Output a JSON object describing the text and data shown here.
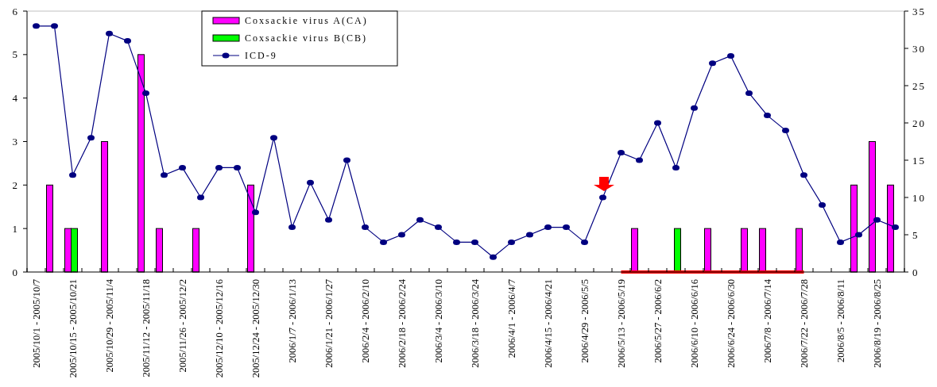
{
  "chart_data": {
    "type": "bar",
    "categories": [
      "2005/10/1 - 2005/10/7",
      null,
      "2005/10/15 - 2005/10/21",
      null,
      "2005/10/29 - 2005/11/4",
      null,
      "2005/11/12 - 2005/11/18",
      null,
      "2005/11/26 - 2005/12/2",
      null,
      "2005/12/10 - 2005/12/16",
      null,
      "2005/12/24 - 2005/12/30",
      null,
      "2006/1/7 - 2006/1/13",
      null,
      "2006/1/21 - 2006/1/27",
      null,
      "2006/2/4 - 2006/2/10",
      null,
      "2006/2/18 - 2006/2/24",
      null,
      "2006/3/4 - 2006/3/10",
      null,
      "2006/3/18 - 2006/3/24",
      null,
      "2006/4/1 - 2006/4/7",
      null,
      "2006/4/15 - 2006/4/21",
      null,
      "2006/4/29 - 2006/5/5",
      null,
      "2006/5/13 - 2006/5/19",
      null,
      "2006/5/27 - 2006/6/2",
      null,
      "2006/6/10 - 2006/6/16",
      null,
      "2006/6/24 - 2006/6/30",
      null,
      "2006/7/8 - 2006/7/14",
      null,
      "2006/7/22 - 2006/7/28",
      null,
      "2006/8/5 - 2006/8/11",
      null,
      "2006/8/19 - 2006/8/25",
      null
    ],
    "series": [
      {
        "name": "Coxsackie virus A(CA)",
        "color": "#ff00ff",
        "values": [
          null,
          2,
          1,
          null,
          3,
          null,
          5,
          1,
          null,
          1,
          null,
          null,
          2,
          null,
          null,
          null,
          null,
          null,
          null,
          null,
          null,
          null,
          null,
          null,
          null,
          null,
          null,
          null,
          null,
          null,
          null,
          null,
          null,
          1,
          null,
          null,
          null,
          1,
          null,
          1,
          1,
          null,
          1,
          null,
          null,
          2,
          3,
          2
        ]
      },
      {
        "name": "Coxsackie virus B(CB)",
        "color": "#00ff00",
        "values": [
          null,
          null,
          1,
          null,
          null,
          null,
          null,
          null,
          null,
          null,
          null,
          null,
          null,
          null,
          null,
          null,
          null,
          null,
          null,
          null,
          null,
          null,
          null,
          null,
          null,
          null,
          null,
          null,
          null,
          null,
          null,
          null,
          null,
          null,
          null,
          1,
          null,
          null,
          null,
          null,
          null,
          null,
          null,
          null,
          null,
          null,
          null,
          null
        ]
      },
      {
        "name": "ICD-9",
        "type": "line",
        "axis": "y2",
        "color": "#000080",
        "values": [
          33,
          33,
          13,
          18,
          32,
          31,
          24,
          13,
          14,
          10,
          14,
          14,
          8,
          18,
          6,
          12,
          7,
          15,
          6,
          4,
          5,
          7,
          6,
          4,
          4,
          2,
          4,
          5,
          6,
          6,
          4,
          10,
          16,
          15,
          20,
          14,
          22,
          28,
          29,
          24,
          21,
          19,
          13,
          9,
          4,
          5,
          7,
          6
        ]
      },
      {
        "type": "line",
        "color": "#ff0000",
        "marker": "none",
        "values": [
          null,
          null,
          null,
          null,
          null,
          null,
          null,
          null,
          null,
          null,
          null,
          null,
          null,
          null,
          null,
          null,
          null,
          null,
          null,
          null,
          null,
          null,
          null,
          null,
          null,
          null,
          null,
          null,
          null,
          null,
          null,
          null,
          0,
          0,
          0,
          0,
          0,
          0,
          0,
          0,
          0,
          0,
          0,
          null,
          null,
          null,
          null,
          null
        ]
      }
    ],
    "ylim": [
      0,
      6
    ],
    "yticks": [
      0,
      1,
      2,
      3,
      4,
      5,
      6
    ],
    "y2lim": [
      0,
      35
    ],
    "y2ticks": [
      0,
      5,
      10,
      15,
      20,
      25,
      30,
      35
    ],
    "marker": "circle",
    "grid": false,
    "legend": "top"
  }
}
